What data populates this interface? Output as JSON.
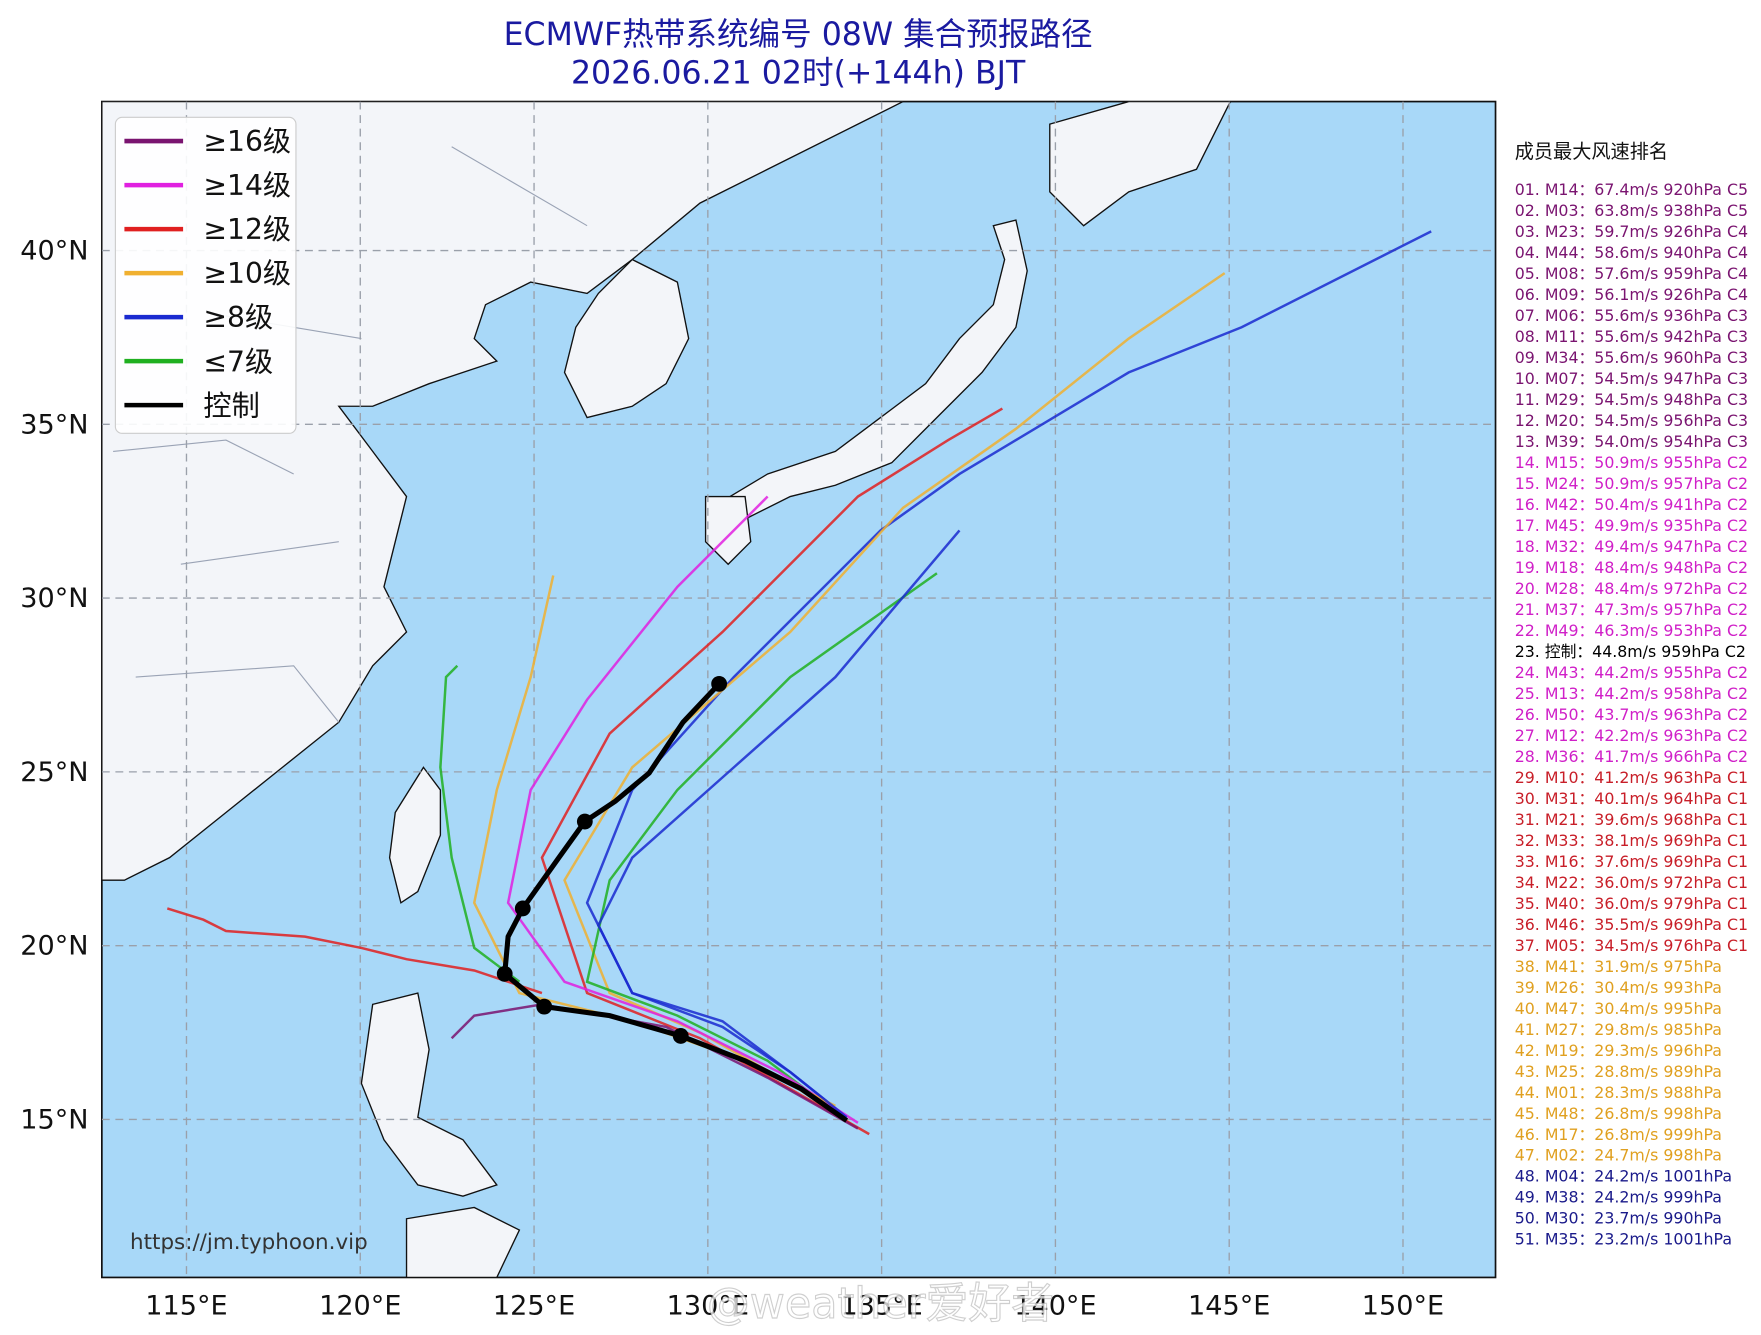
{
  "title": "ECMWF热带系统编号 08W 集合预报路径",
  "subtitle": "2026.06.21 02时(+144h) BJT",
  "legend": [
    {
      "label": "≥16级",
      "color": "#7a1470"
    },
    {
      "label": "≥14级",
      "color": "#e020e0"
    },
    {
      "label": "≥12级",
      "color": "#e02020"
    },
    {
      "label": "≥10级",
      "color": "#f0b030"
    },
    {
      "label": "≥8级",
      "color": "#1a2ad0"
    },
    {
      "label": "≤7级",
      "color": "#20b020"
    },
    {
      "label": "控制",
      "color": "#000000"
    }
  ],
  "lat_labels": [
    "40°N",
    "35°N",
    "30°N",
    "25°N",
    "20°N",
    "15°N"
  ],
  "lon_labels": [
    "115°E",
    "120°E",
    "125°E",
    "130°E",
    "135°E",
    "140°E",
    "145°E",
    "150°E"
  ],
  "ranking_title": "成员最大风速排名",
  "ranking": [
    {
      "text": "01. M14：67.4m/s 920hPa C5",
      "color": "#7a1470"
    },
    {
      "text": "02. M03：63.8m/s 938hPa C5",
      "color": "#7a1470"
    },
    {
      "text": "03. M23：59.7m/s 926hPa C4",
      "color": "#7a1470"
    },
    {
      "text": "04. M44：58.6m/s 940hPa C4",
      "color": "#7a1470"
    },
    {
      "text": "05. M08：57.6m/s 959hPa C4",
      "color": "#7a1470"
    },
    {
      "text": "06. M09：56.1m/s 926hPa C4",
      "color": "#7a1470"
    },
    {
      "text": "07. M06：55.6m/s 936hPa C3",
      "color": "#7a1470"
    },
    {
      "text": "08. M11：55.6m/s 942hPa C3",
      "color": "#7a1470"
    },
    {
      "text": "09. M34：55.6m/s 960hPa C3",
      "color": "#7a1470"
    },
    {
      "text": "10. M07：54.5m/s 947hPa C3",
      "color": "#7a1470"
    },
    {
      "text": "11. M29：54.5m/s 948hPa C3",
      "color": "#7a1470"
    },
    {
      "text": "12. M20：54.5m/s 956hPa C3",
      "color": "#7a1470"
    },
    {
      "text": "13. M39：54.0m/s 954hPa C3",
      "color": "#7a1470"
    },
    {
      "text": "14. M15：50.9m/s 955hPa C2",
      "color": "#d020c8"
    },
    {
      "text": "15. M24：50.9m/s 957hPa C2",
      "color": "#d020c8"
    },
    {
      "text": "16. M42：50.4m/s 941hPa C2",
      "color": "#d020c8"
    },
    {
      "text": "17. M45：49.9m/s 935hPa C2",
      "color": "#d020c8"
    },
    {
      "text": "18. M32：49.4m/s 947hPa C2",
      "color": "#d020c8"
    },
    {
      "text": "19. M18：48.4m/s 948hPa C2",
      "color": "#d020c8"
    },
    {
      "text": "20. M28：48.4m/s 972hPa C2",
      "color": "#d020c8"
    },
    {
      "text": "21. M37：47.3m/s 957hPa C2",
      "color": "#d020c8"
    },
    {
      "text": "22. M49：46.3m/s 953hPa C2",
      "color": "#d020c8"
    },
    {
      "text": "23. 控制：44.8m/s 959hPa C2",
      "color": "#000000"
    },
    {
      "text": "24. M43：44.2m/s 955hPa C2",
      "color": "#d020c8"
    },
    {
      "text": "25. M13：44.2m/s 958hPa C2",
      "color": "#d020c8"
    },
    {
      "text": "26. M50：43.7m/s 963hPa C2",
      "color": "#d020c8"
    },
    {
      "text": "27. M12：42.2m/s 963hPa C2",
      "color": "#d020c8"
    },
    {
      "text": "28. M36：41.7m/s 966hPa C2",
      "color": "#d020c8"
    },
    {
      "text": "29. M10：41.2m/s 963hPa C1",
      "color": "#c81e28"
    },
    {
      "text": "30. M31：40.1m/s 964hPa C1",
      "color": "#c81e28"
    },
    {
      "text": "31. M21：39.6m/s 968hPa C1",
      "color": "#c81e28"
    },
    {
      "text": "32. M33：38.1m/s 969hPa C1",
      "color": "#c81e28"
    },
    {
      "text": "33. M16：37.6m/s 969hPa C1",
      "color": "#c81e28"
    },
    {
      "text": "34. M22：36.0m/s 972hPa C1",
      "color": "#c81e28"
    },
    {
      "text": "35. M40：36.0m/s 979hPa C1",
      "color": "#c81e28"
    },
    {
      "text": "36. M46：35.5m/s 969hPa C1",
      "color": "#c81e28"
    },
    {
      "text": "37. M05：34.5m/s 976hPa C1",
      "color": "#c81e28"
    },
    {
      "text": "38. M41：31.9m/s 975hPa",
      "color": "#e0a020"
    },
    {
      "text": "39. M26：30.4m/s 993hPa",
      "color": "#e0a020"
    },
    {
      "text": "40. M47：30.4m/s 995hPa",
      "color": "#e0a020"
    },
    {
      "text": "41. M27：29.8m/s 985hPa",
      "color": "#e0a020"
    },
    {
      "text": "42. M19：29.3m/s 996hPa",
      "color": "#e0a020"
    },
    {
      "text": "43. M25：28.8m/s 989hPa",
      "color": "#e0a020"
    },
    {
      "text": "44. M01：28.3m/s 988hPa",
      "color": "#e0a020"
    },
    {
      "text": "45. M48：26.8m/s 998hPa",
      "color": "#e0a020"
    },
    {
      "text": "46. M17：26.8m/s 999hPa",
      "color": "#e0a020"
    },
    {
      "text": "47. M02：24.7m/s 998hPa",
      "color": "#e0a020"
    },
    {
      "text": "48. M04：24.2m/s 1001hPa",
      "color": "#1a1a8a"
    },
    {
      "text": "49. M38：24.2m/s 999hPa",
      "color": "#1a1a8a"
    },
    {
      "text": "50. M30：23.7m/s 990hPa",
      "color": "#1a1a8a"
    },
    {
      "text": "51. M35：23.2m/s 1001hPa",
      "color": "#1a1a8a"
    }
  ],
  "source_url": "https://jm.typhoon.vip",
  "watermark": "@weather爱好者"
}
